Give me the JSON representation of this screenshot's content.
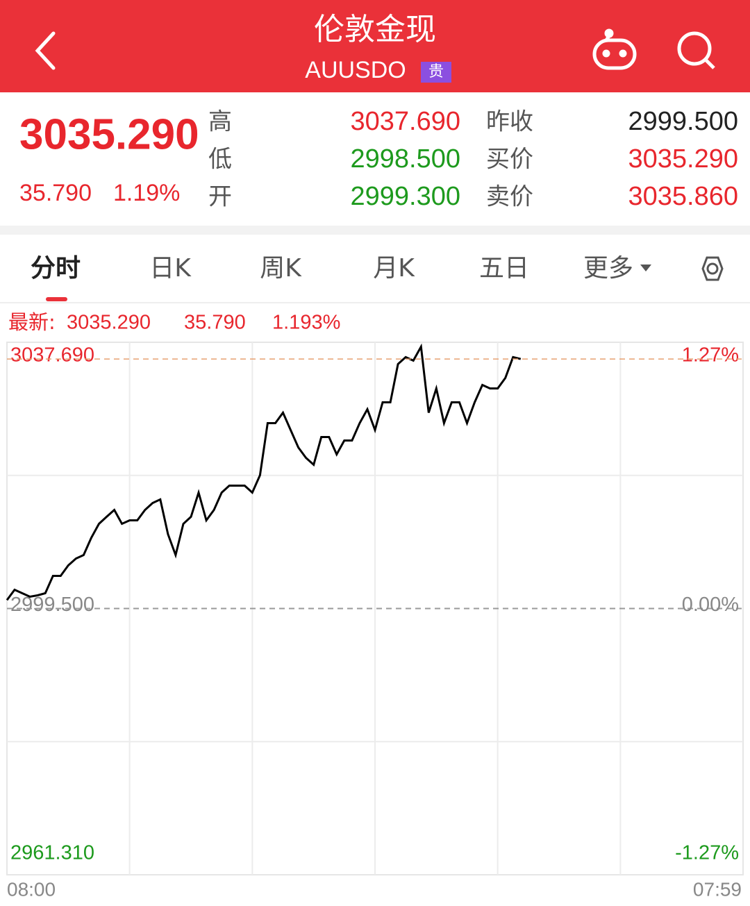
{
  "header": {
    "title": "伦敦金现",
    "code": "AUUSDO",
    "badge": "贵"
  },
  "quote": {
    "price": "3035.290",
    "change": "35.790",
    "change_pct": "1.19%",
    "left": [
      {
        "label": "高",
        "value": "3037.690"
      },
      {
        "label": "低",
        "value": "2998.500"
      },
      {
        "label": "开",
        "value": "2999.300"
      }
    ],
    "right": [
      {
        "label": "昨收",
        "value": "2999.500"
      },
      {
        "label": "买价",
        "value": "3035.290"
      },
      {
        "label": "卖价",
        "value": "3035.860"
      }
    ]
  },
  "tabs": [
    "分时",
    "日K",
    "周K",
    "月K",
    "五日",
    "更多"
  ],
  "chart_data": {
    "type": "line",
    "latest": {
      "label": "最新:",
      "price": "3035.290",
      "change": "35.790",
      "pct": "1.193%"
    },
    "x_labels": [
      "08:00",
      "07:59"
    ],
    "ylim": [
      2961.31,
      3037.69
    ],
    "yticks": [
      {
        "value": 3037.69,
        "label": "3037.690"
      },
      {
        "value": 2999.5,
        "label": "2999.500"
      },
      {
        "value": 2961.31,
        "label": "2961.310"
      }
    ],
    "y2lim": [
      -1.27,
      1.27
    ],
    "y2ticks": [
      {
        "value": 1.27,
        "label": "1.27%"
      },
      {
        "value": 0,
        "label": "0.00%"
      },
      {
        "value": -1.27,
        "label": "-1.27%"
      }
    ],
    "series": [
      {
        "color": "#000000",
        "values": [
          3000.7,
          3002.19,
          3001.69,
          3001.19,
          3001.39,
          3001.69,
          3004.18,
          3004.18,
          3005.68,
          3006.67,
          3007.17,
          3009.66,
          3011.65,
          3012.65,
          3013.64,
          3011.65,
          3012.15,
          3012.15,
          3013.64,
          3014.64,
          3015.14,
          3010.16,
          3007.17,
          3011.65,
          3012.65,
          3016.13,
          3012.15,
          3013.64,
          3016.13,
          3017.13,
          3017.13,
          3017.13,
          3016.13,
          3018.62,
          3026.09,
          3026.09,
          3027.59,
          3025.1,
          3022.6,
          3021.11,
          3020.12,
          3024.1,
          3024.1,
          3021.61,
          3023.6,
          3023.6,
          3026.09,
          3028.08,
          3025.1,
          3029.08,
          3029.08,
          3034.56,
          3035.56,
          3035.06,
          3037.05,
          3027.59,
          3031.07,
          3026.09,
          3029.08,
          3029.08,
          3026.09,
          3029.08,
          3031.57,
          3031.07,
          3031.07,
          3032.57,
          3035.56,
          3035.29
        ]
      }
    ]
  }
}
